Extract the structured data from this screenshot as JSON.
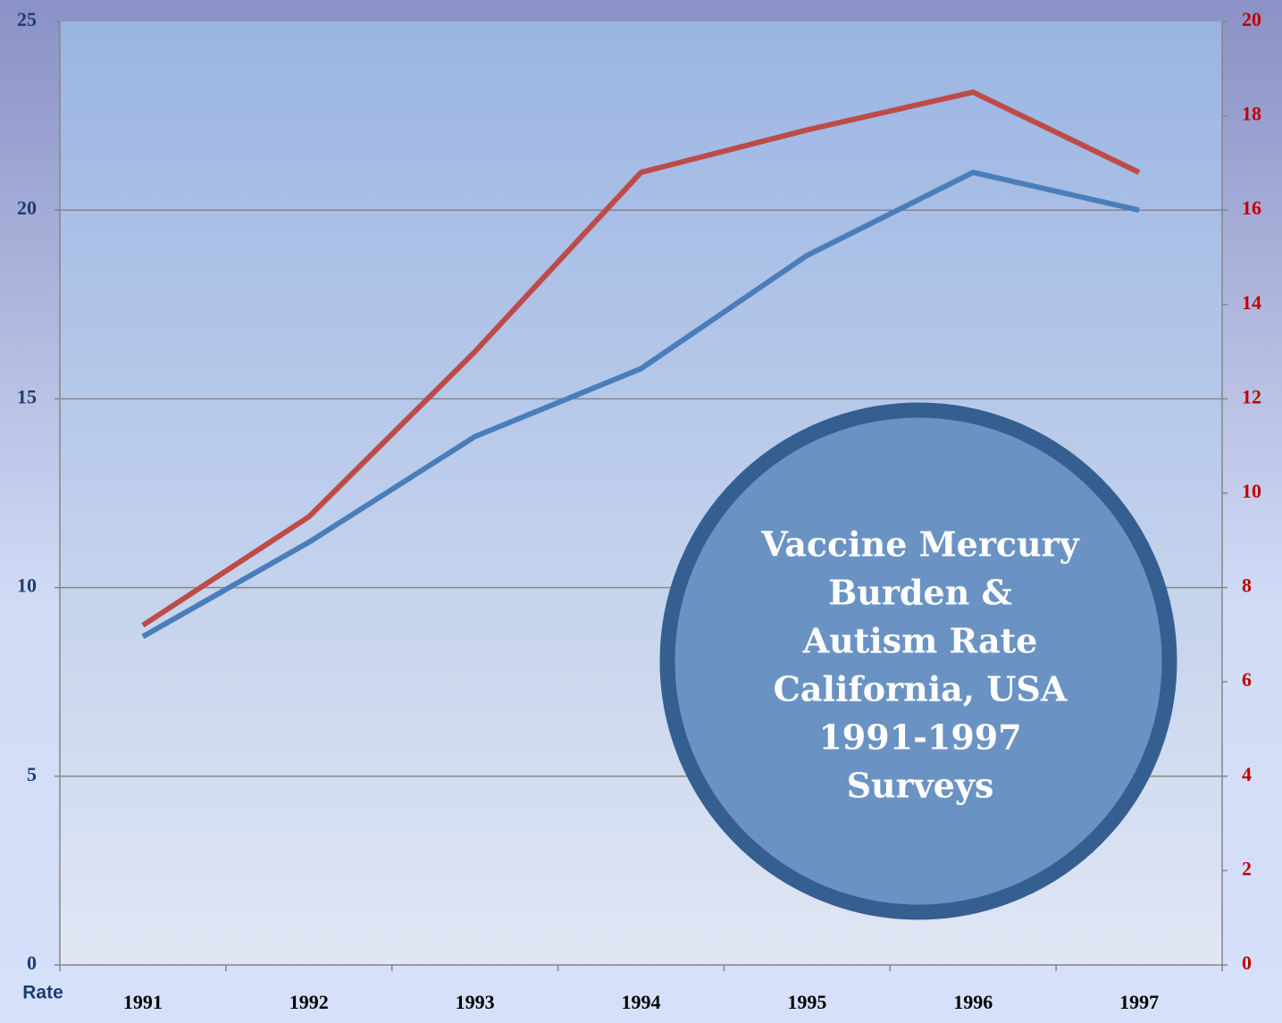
{
  "chart_data": {
    "type": "line",
    "categories": [
      "1991",
      "1992",
      "1993",
      "1994",
      "1995",
      "1996",
      "1997"
    ],
    "series": [
      {
        "color": "#4a7ebb",
        "values": [
          8.7,
          11.2,
          14.0,
          15.8,
          18.8,
          21.0,
          20.0
        ]
      },
      {
        "color": "#be4b48",
        "axis": "y2",
        "values": [
          7.2,
          9.5,
          13.0,
          16.8,
          17.7,
          18.5,
          16.8
        ]
      }
    ],
    "ylim": [
      0,
      25
    ],
    "yticks": [
      0,
      5,
      10,
      15,
      20,
      25
    ],
    "y2lim": [
      0,
      20
    ],
    "y2ticks": [
      0,
      2,
      4,
      6,
      8,
      10,
      12,
      14,
      16,
      18,
      20
    ],
    "grid": true,
    "axis_label": "Rate",
    "annotation": [
      "Vaccine Mercury",
      "Burden &",
      "Autism Rate",
      "California, USA",
      "1991-1997",
      "Surveys"
    ]
  }
}
